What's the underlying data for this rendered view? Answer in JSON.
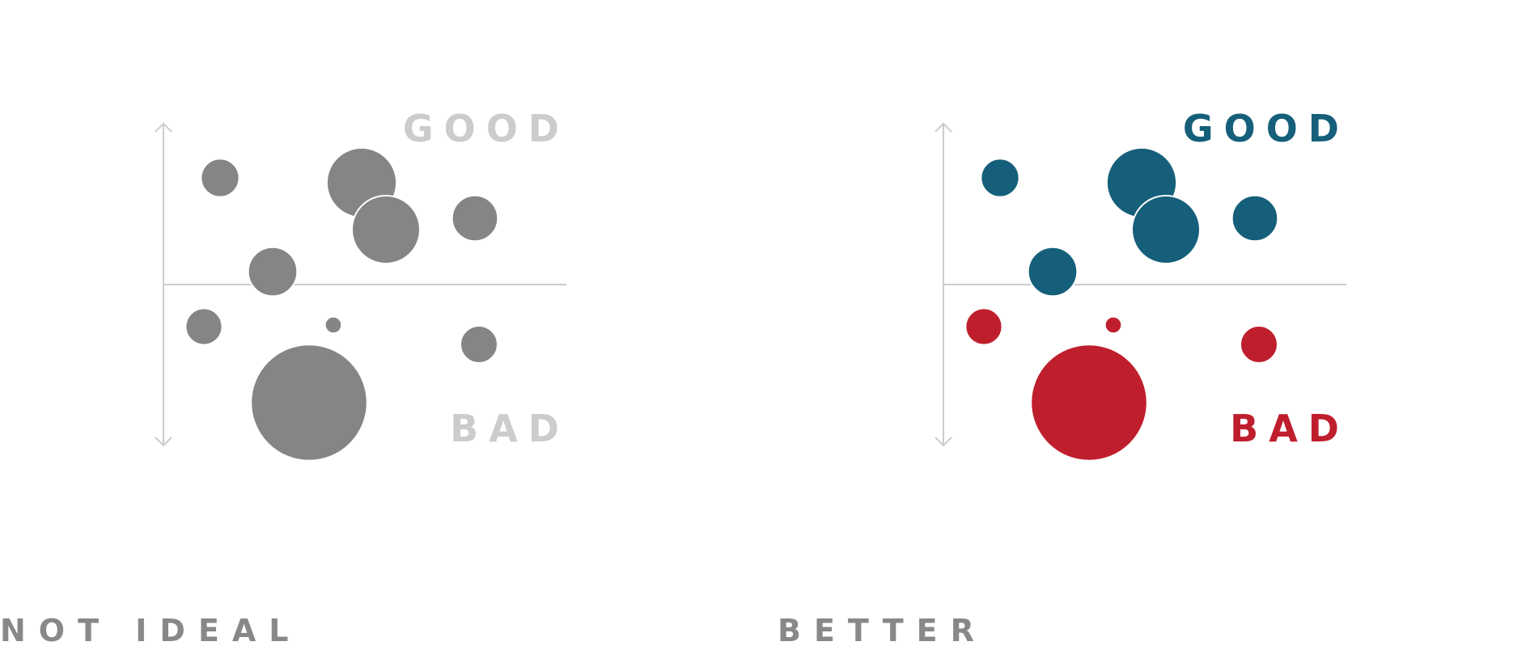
{
  "colors": {
    "axis": "#cccccc",
    "neutral_bubble": "#858585",
    "neutral_label": "#cccccc",
    "caption": "#888888",
    "good": "#155f7a",
    "bad": "#bf1e2d"
  },
  "captions": {
    "left": "NOT IDEAL",
    "right": "BETTER"
  },
  "chart_data": [
    {
      "type": "scatter",
      "title": "",
      "xlabel": "",
      "ylabel": "",
      "xlim": [
        0,
        100
      ],
      "ylim": [
        -100,
        100
      ],
      "grid": false,
      "annotations": {
        "top": "GOOD",
        "bottom": "BAD"
      },
      "color_mode": "neutral",
      "series": [
        {
          "points": [
            {
              "x": 14,
              "y": 66,
              "size": 1.15
            },
            {
              "x": 49,
              "y": 63,
              "size": 2.1
            },
            {
              "x": 55,
              "y": 34,
              "size": 2.05
            },
            {
              "x": 77,
              "y": 41,
              "size": 1.38
            },
            {
              "x": 27,
              "y": 8,
              "size": 1.48
            },
            {
              "x": 10,
              "y": -26,
              "size": 1.1
            },
            {
              "x": 42,
              "y": -25,
              "size": 0.5
            },
            {
              "x": 78,
              "y": -37,
              "size": 1.12
            },
            {
              "x": 36,
              "y": -73,
              "size": 3.5
            }
          ]
        }
      ]
    },
    {
      "type": "scatter",
      "title": "",
      "xlabel": "",
      "ylabel": "",
      "xlim": [
        0,
        100
      ],
      "ylim": [
        -100,
        100
      ],
      "grid": false,
      "annotations": {
        "top": "GOOD",
        "bottom": "BAD"
      },
      "color_mode": "diverging",
      "series": [
        {
          "points": [
            {
              "x": 14,
              "y": 66,
              "size": 1.15
            },
            {
              "x": 49,
              "y": 63,
              "size": 2.1
            },
            {
              "x": 55,
              "y": 34,
              "size": 2.05
            },
            {
              "x": 77,
              "y": 41,
              "size": 1.38
            },
            {
              "x": 27,
              "y": 8,
              "size": 1.48
            },
            {
              "x": 10,
              "y": -26,
              "size": 1.1
            },
            {
              "x": 42,
              "y": -25,
              "size": 0.5
            },
            {
              "x": 78,
              "y": -37,
              "size": 1.12
            },
            {
              "x": 36,
              "y": -73,
              "size": 3.5
            }
          ]
        }
      ]
    }
  ]
}
